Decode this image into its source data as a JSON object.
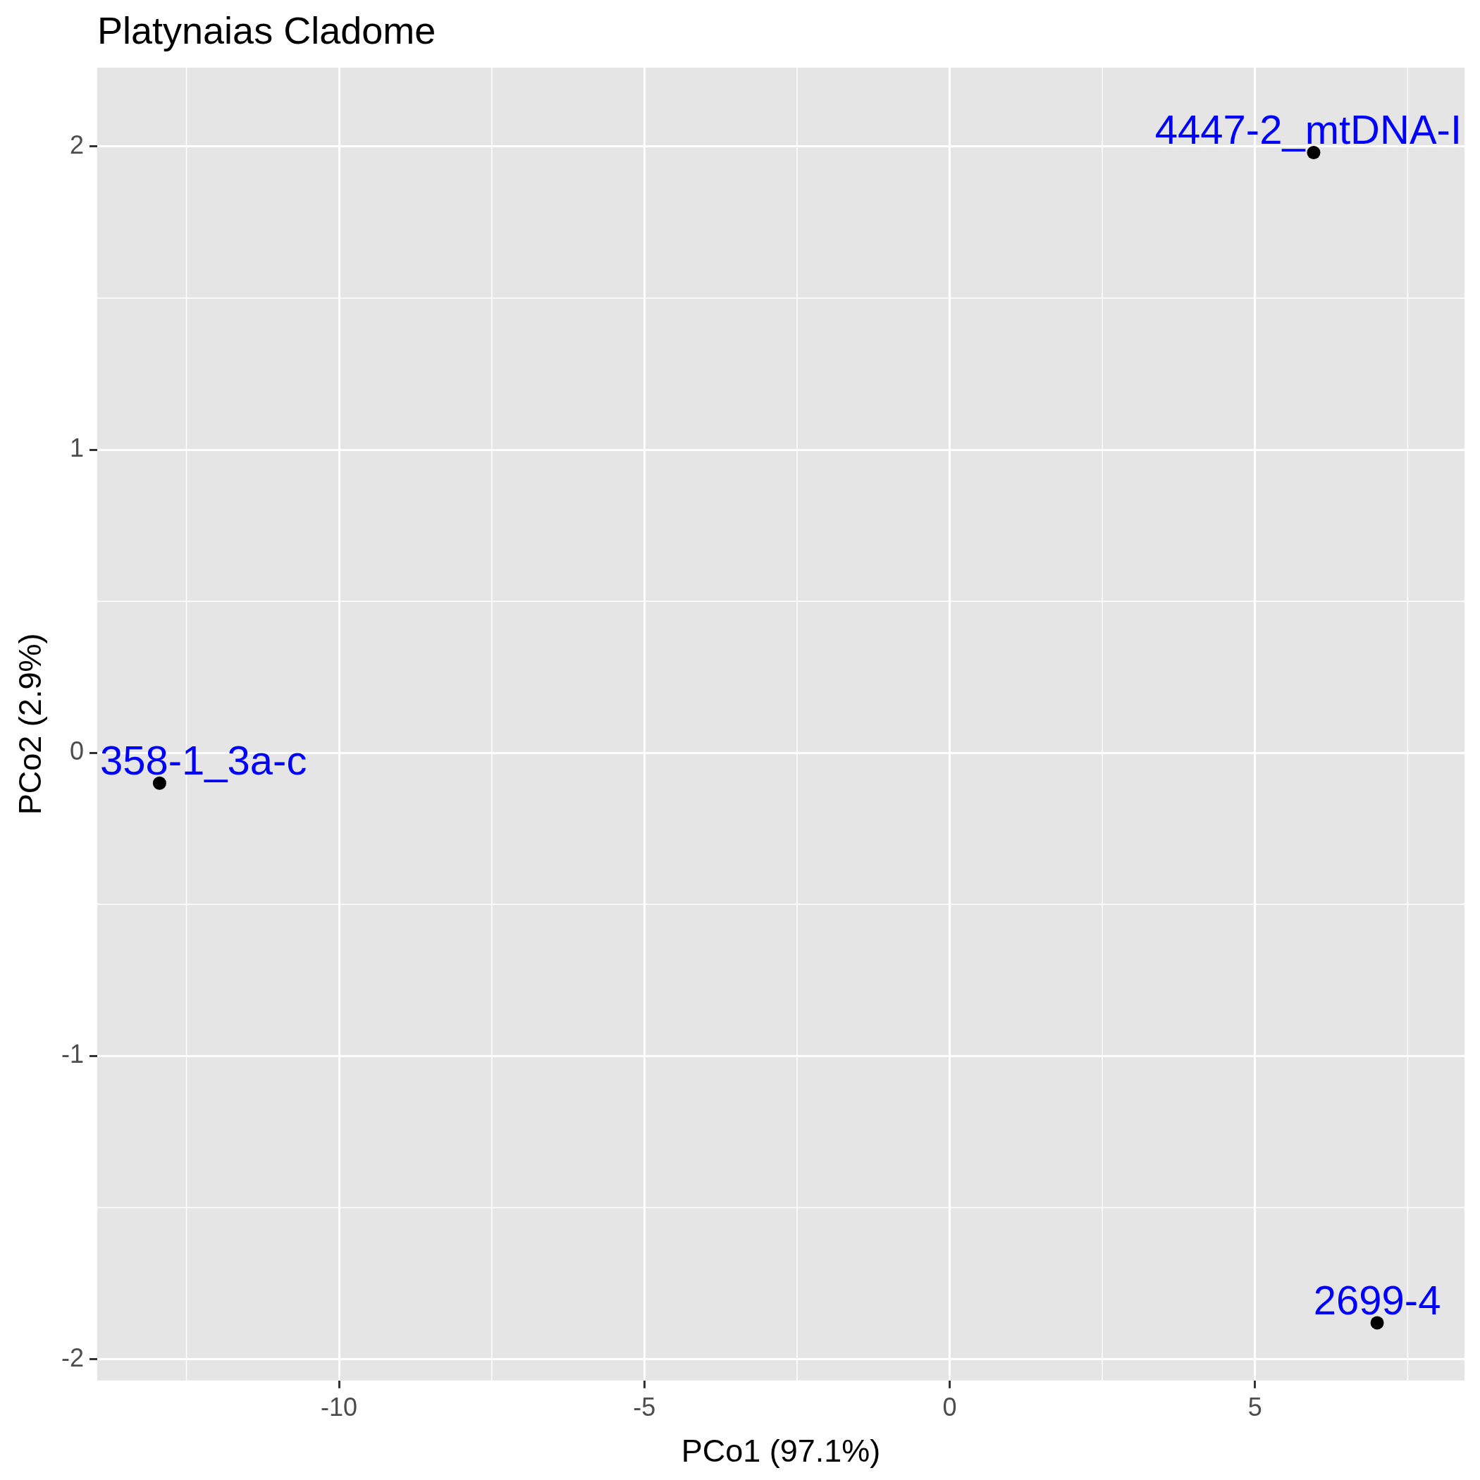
{
  "chart_data": {
    "type": "scatter",
    "title": "Platynaias Cladome",
    "xlabel": "PCo1 (97.1%)",
    "ylabel": "PCo2 (2.9%)",
    "x": [
      -12.94,
      5.96,
      7.0
    ],
    "values": [
      -0.1,
      1.98,
      -1.88
    ],
    "color": "#000000",
    "marker": "circle",
    "xlim": [
      -13.96,
      8.43
    ],
    "ylim": [
      -2.07,
      2.26
    ],
    "xticks": [
      -10,
      -5,
      0,
      5
    ],
    "yticks": [
      -2,
      -1,
      0,
      1,
      2
    ],
    "grid": true,
    "annotations": [
      {
        "text": "358-1_3a-c",
        "x": -12.94,
        "y": -0.1
      },
      {
        "text": "4447-2_mtDNA-I",
        "x": 5.96,
        "y": 1.98
      },
      {
        "text": "2699-4",
        "x": 7.0,
        "y": -1.88
      }
    ]
  }
}
